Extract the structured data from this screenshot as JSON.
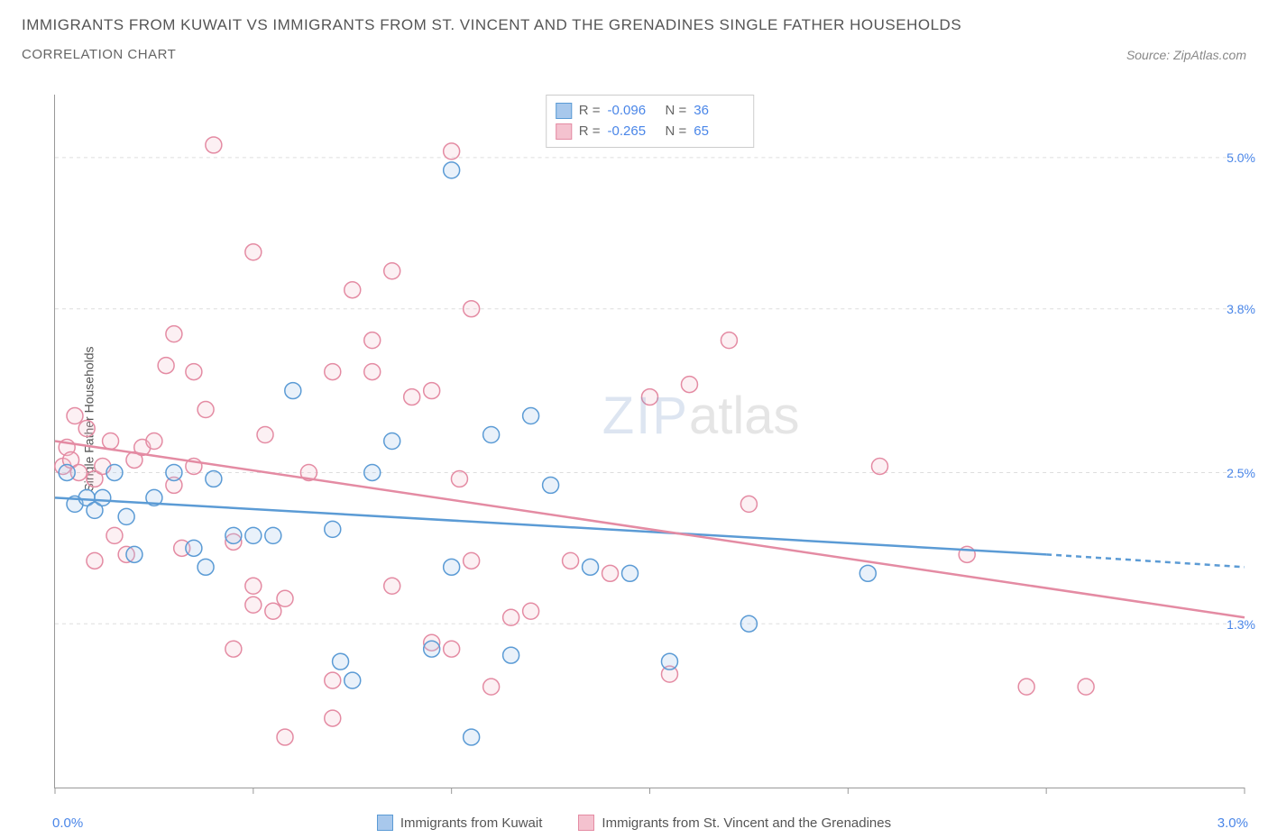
{
  "header": {
    "title": "IMMIGRANTS FROM KUWAIT VS IMMIGRANTS FROM ST. VINCENT AND THE GRENADINES SINGLE FATHER HOUSEHOLDS",
    "subtitle": "CORRELATION CHART",
    "source": "Source: ZipAtlas.com"
  },
  "chart": {
    "type": "scatter",
    "y_axis_label": "Single Father Households",
    "xlim": [
      0.0,
      3.0
    ],
    "ylim": [
      0.0,
      5.5
    ],
    "y_ticks": [
      1.3,
      2.5,
      3.8,
      5.0
    ],
    "y_tick_labels": [
      "1.3%",
      "2.5%",
      "3.8%",
      "5.0%"
    ],
    "x_tick_positions": [
      0.0,
      0.5,
      1.0,
      1.5,
      2.0,
      2.5,
      3.0
    ],
    "x_start_label": "0.0%",
    "x_end_label": "3.0%",
    "background_color": "#ffffff",
    "grid_color": "#dddddd",
    "marker_radius": 9,
    "marker_stroke_width": 1.5,
    "marker_fill_opacity": 0.25,
    "watermark_zip": "ZIP",
    "watermark_atlas": "atlas"
  },
  "series": {
    "kuwait": {
      "label": "Immigrants from Kuwait",
      "stroke": "#5b9bd5",
      "fill": "#a8c8ec",
      "R": "-0.096",
      "N": "36",
      "trend": {
        "x1": 0.0,
        "y1": 2.3,
        "x2": 2.5,
        "y2": 1.85,
        "x3": 3.0,
        "y3": 1.75
      },
      "points": [
        [
          0.03,
          2.5
        ],
        [
          0.05,
          2.25
        ],
        [
          0.08,
          2.3
        ],
        [
          0.1,
          2.2
        ],
        [
          0.12,
          2.3
        ],
        [
          0.15,
          2.5
        ],
        [
          0.18,
          2.15
        ],
        [
          0.2,
          1.85
        ],
        [
          0.25,
          2.3
        ],
        [
          0.3,
          2.5
        ],
        [
          0.35,
          1.9
        ],
        [
          0.38,
          1.75
        ],
        [
          0.4,
          2.45
        ],
        [
          0.45,
          2.0
        ],
        [
          0.5,
          2.0
        ],
        [
          0.55,
          2.0
        ],
        [
          0.6,
          3.15
        ],
        [
          0.7,
          2.05
        ],
        [
          0.72,
          1.0
        ],
        [
          0.75,
          0.85
        ],
        [
          0.8,
          2.5
        ],
        [
          0.85,
          2.75
        ],
        [
          0.95,
          1.1
        ],
        [
          1.0,
          4.9
        ],
        [
          1.0,
          1.75
        ],
        [
          1.05,
          0.4
        ],
        [
          1.1,
          2.8
        ],
        [
          1.15,
          1.05
        ],
        [
          1.2,
          2.95
        ],
        [
          1.25,
          2.4
        ],
        [
          1.35,
          1.75
        ],
        [
          1.45,
          1.7
        ],
        [
          1.55,
          1.0
        ],
        [
          1.75,
          1.3
        ],
        [
          2.05,
          1.7
        ]
      ]
    },
    "stvincent": {
      "label": "Immigrants from St. Vincent and the Grenadines",
      "stroke": "#e48ba3",
      "fill": "#f4c2cf",
      "R": "-0.265",
      "N": "65",
      "trend": {
        "x1": 0.0,
        "y1": 2.75,
        "x2": 3.0,
        "y2": 1.35
      },
      "points": [
        [
          0.02,
          2.55
        ],
        [
          0.03,
          2.7
        ],
        [
          0.04,
          2.6
        ],
        [
          0.05,
          2.95
        ],
        [
          0.06,
          2.5
        ],
        [
          0.08,
          2.85
        ],
        [
          0.1,
          2.45
        ],
        [
          0.1,
          1.8
        ],
        [
          0.12,
          2.55
        ],
        [
          0.14,
          2.75
        ],
        [
          0.15,
          2.0
        ],
        [
          0.18,
          1.85
        ],
        [
          0.2,
          2.6
        ],
        [
          0.22,
          2.7
        ],
        [
          0.25,
          2.75
        ],
        [
          0.28,
          3.35
        ],
        [
          0.3,
          2.4
        ],
        [
          0.3,
          3.6
        ],
        [
          0.32,
          1.9
        ],
        [
          0.35,
          3.3
        ],
        [
          0.35,
          2.55
        ],
        [
          0.38,
          3.0
        ],
        [
          0.4,
          5.1
        ],
        [
          0.45,
          1.1
        ],
        [
          0.45,
          1.95
        ],
        [
          0.5,
          1.45
        ],
        [
          0.5,
          1.6
        ],
        [
          0.5,
          4.25
        ],
        [
          0.53,
          2.8
        ],
        [
          0.55,
          1.4
        ],
        [
          0.58,
          1.5
        ],
        [
          0.58,
          0.4
        ],
        [
          0.64,
          2.5
        ],
        [
          0.7,
          0.85
        ],
        [
          0.7,
          3.3
        ],
        [
          0.7,
          0.55
        ],
        [
          0.75,
          3.95
        ],
        [
          0.8,
          3.3
        ],
        [
          0.8,
          3.55
        ],
        [
          0.85,
          1.6
        ],
        [
          0.85,
          4.1
        ],
        [
          0.9,
          3.1
        ],
        [
          0.95,
          1.15
        ],
        [
          0.95,
          3.15
        ],
        [
          1.0,
          5.05
        ],
        [
          1.0,
          1.1
        ],
        [
          1.02,
          2.45
        ],
        [
          1.05,
          3.8
        ],
        [
          1.05,
          1.8
        ],
        [
          1.1,
          0.8
        ],
        [
          1.15,
          1.35
        ],
        [
          1.2,
          1.4
        ],
        [
          1.3,
          1.8
        ],
        [
          1.4,
          1.7
        ],
        [
          1.5,
          3.1
        ],
        [
          1.55,
          0.9
        ],
        [
          1.6,
          3.2
        ],
        [
          1.7,
          3.55
        ],
        [
          1.75,
          2.25
        ],
        [
          2.08,
          2.55
        ],
        [
          2.3,
          1.85
        ],
        [
          2.45,
          0.8
        ],
        [
          2.6,
          0.8
        ]
      ]
    }
  },
  "stats_box": {
    "r_label": "R =",
    "n_label": "N ="
  }
}
